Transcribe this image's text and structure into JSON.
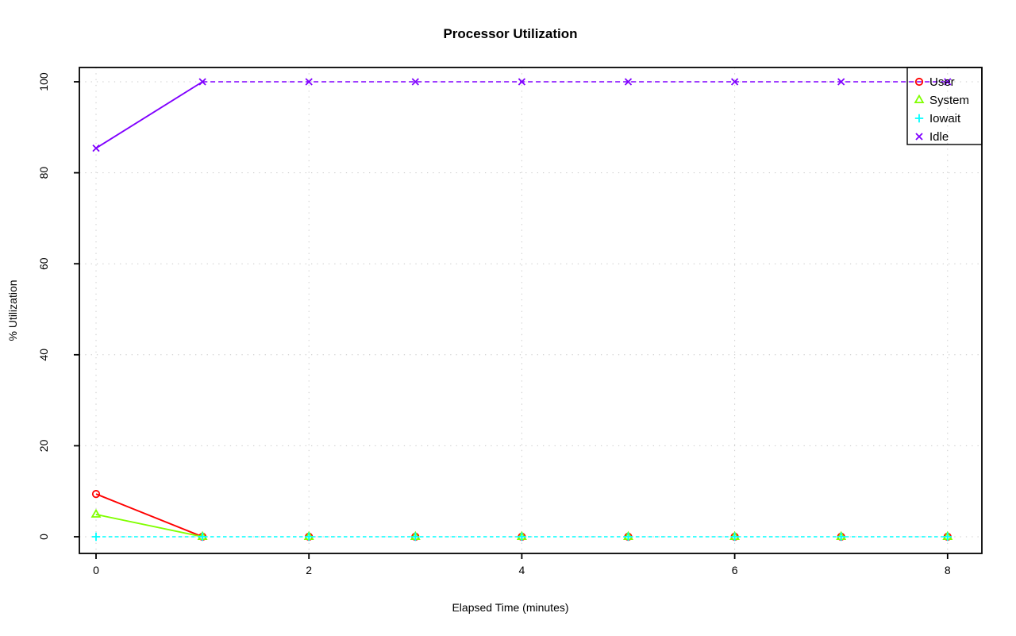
{
  "chart_data": {
    "type": "line",
    "title": "Processor Utilization",
    "xlabel": "Elapsed Time (minutes)",
    "ylabel": "% Utilization",
    "x": [
      0,
      1,
      2,
      3,
      4,
      5,
      6,
      7,
      8
    ],
    "x_ticks": [
      0,
      2,
      4,
      6,
      8
    ],
    "y_ticks": [
      0,
      20,
      40,
      60,
      80,
      100
    ],
    "xlim": [
      0,
      8
    ],
    "ylim": [
      0,
      100
    ],
    "grid": true,
    "grid_color": "#C8C8C8",
    "legend_position": "top-right",
    "series": [
      {
        "name": "User",
        "color": "#FF0000",
        "marker": "circle",
        "values": [
          9.4,
          0,
          0,
          0,
          0,
          0,
          0,
          0,
          0
        ],
        "line_segments": [
          {
            "from": 0,
            "to": 1,
            "style": "solid"
          }
        ]
      },
      {
        "name": "System",
        "color": "#80FF00",
        "marker": "triangle",
        "values": [
          4.9,
          0,
          0,
          0,
          0,
          0,
          0,
          0,
          0
        ],
        "line_segments": [
          {
            "from": 0,
            "to": 1,
            "style": "solid"
          }
        ]
      },
      {
        "name": "Iowait",
        "color": "#00FFFF",
        "marker": "plus",
        "values": [
          0,
          0,
          0,
          0,
          0,
          0,
          0,
          0,
          0
        ],
        "line_segments": [
          {
            "from": 0,
            "to": 8,
            "style": "dashed"
          }
        ]
      },
      {
        "name": "Idle",
        "color": "#8000FF",
        "marker": "x",
        "values": [
          85.4,
          100,
          100,
          100,
          100,
          100,
          100,
          100,
          100
        ],
        "line_segments": [
          {
            "from": 0,
            "to": 1,
            "style": "solid"
          },
          {
            "from": 1,
            "to": 8,
            "style": "dashed"
          }
        ]
      }
    ]
  }
}
